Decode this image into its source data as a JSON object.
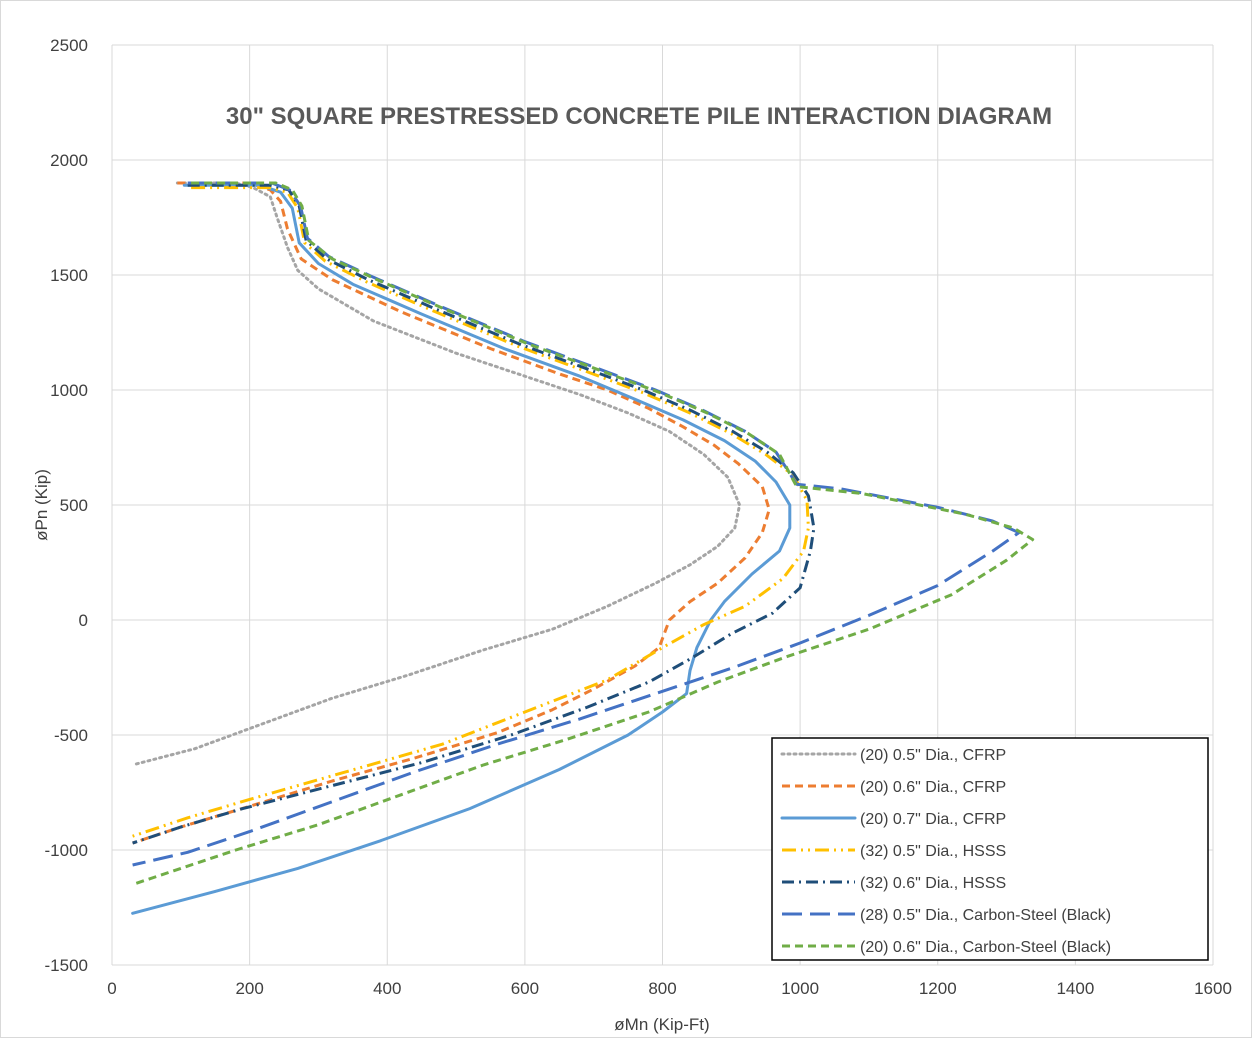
{
  "chart_data": {
    "type": "line",
    "title": "30\" SQUARE PRESTRESSED CONCRETE PILE INTERACTION DIAGRAM",
    "xlabel": "øMn (Kip-Ft)",
    "ylabel": "øPn (Kip)",
    "xlim": [
      0,
      1600
    ],
    "ylim": [
      -1500,
      2500
    ],
    "xticks": [
      "0",
      "200",
      "400",
      "600",
      "800",
      "1000",
      "1200",
      "1400",
      "1600"
    ],
    "yticks": [
      "-1500",
      "-1000",
      "-500",
      "0",
      "500",
      "1000",
      "1500",
      "2000",
      "2500"
    ],
    "grid": true,
    "legend_position": "bottom-right",
    "series": [
      {
        "name": "(20) 0.5\" Dia., CFRP",
        "color": "#a5a5a5",
        "dash": "dot",
        "x": [
          95,
          180,
          205,
          230,
          240,
          255,
          270,
          300,
          380,
          500,
          600,
          680,
          750,
          810,
          860,
          895,
          912,
          905,
          880,
          840,
          790,
          720,
          640,
          540,
          430,
          320,
          220,
          120,
          30
        ],
        "y": [
          1900,
          1900,
          1880,
          1840,
          1750,
          1620,
          1520,
          1440,
          1300,
          1160,
          1060,
          980,
          900,
          820,
          720,
          620,
          500,
          400,
          320,
          240,
          160,
          60,
          -40,
          -130,
          -240,
          -340,
          -450,
          -560,
          -630
        ]
      },
      {
        "name": "(20) 0.6\" Dia., CFRP",
        "color": "#ed7d31",
        "dash": "short-dash",
        "x": [
          95,
          200,
          230,
          245,
          255,
          275,
          320,
          420,
          550,
          650,
          720,
          780,
          830,
          875,
          910,
          945,
          955,
          945,
          920,
          880,
          840,
          810,
          795,
          760,
          700,
          640,
          560,
          440,
          320,
          200,
          100,
          30
        ],
        "y": [
          1900,
          1900,
          1870,
          1820,
          1700,
          1570,
          1480,
          1340,
          1180,
          1070,
          1000,
          920,
          840,
          760,
          680,
          580,
          480,
          380,
          270,
          160,
          80,
          0,
          -120,
          -200,
          -300,
          -390,
          -490,
          -600,
          -700,
          -810,
          -900,
          -970
        ]
      },
      {
        "name": "(20) 0.7\" Dia., CFRP",
        "color": "#5b9bd5",
        "dash": "solid",
        "x": [
          105,
          215,
          245,
          262,
          272,
          300,
          350,
          450,
          570,
          680,
          760,
          830,
          890,
          935,
          965,
          985,
          985,
          970,
          930,
          890,
          870,
          850,
          840,
          835,
          800,
          750,
          650,
          520,
          390,
          270,
          150,
          30
        ],
        "y": [
          1890,
          1890,
          1860,
          1790,
          1640,
          1550,
          1460,
          1330,
          1180,
          1060,
          960,
          870,
          780,
          690,
          600,
          500,
          400,
          300,
          200,
          80,
          0,
          -120,
          -220,
          -320,
          -400,
          -500,
          -650,
          -820,
          -960,
          -1080,
          -1180,
          -1275
        ]
      },
      {
        "name": "(32) 0.5\" Dia., HSSS",
        "color": "#ffc000",
        "dash": "dash-dot-dot",
        "x": [
          115,
          228,
          255,
          270,
          280,
          310,
          370,
          470,
          590,
          690,
          770,
          840,
          900,
          950,
          990,
          1010,
          1012,
          1005,
          975,
          920,
          860,
          800,
          720,
          600,
          480,
          340,
          200,
          110,
          30
        ],
        "y": [
          1880,
          1880,
          1860,
          1790,
          1640,
          1560,
          1470,
          1340,
          1190,
          1080,
          990,
          900,
          810,
          720,
          630,
          520,
          400,
          300,
          180,
          60,
          -20,
          -120,
          -260,
          -400,
          -540,
          -660,
          -780,
          -860,
          -940
        ]
      },
      {
        "name": "(32) 0.6\" Dia., HSSS",
        "color": "#1f4e79",
        "dash": "dash-dot",
        "x": [
          110,
          230,
          257,
          272,
          282,
          312,
          372,
          472,
          592,
          692,
          772,
          842,
          902,
          952,
          990,
          1012,
          1020,
          1015,
          1000,
          960,
          900,
          840,
          780,
          690,
          580,
          450,
          320,
          190,
          100,
          30
        ],
        "y": [
          1890,
          1890,
          1870,
          1800,
          1650,
          1570,
          1480,
          1350,
          1200,
          1090,
          1000,
          910,
          820,
          730,
          640,
          540,
          400,
          300,
          140,
          30,
          -60,
          -170,
          -270,
          -380,
          -500,
          -620,
          -720,
          -820,
          -900,
          -970
        ]
      },
      {
        "name": "(28) 0.5\" Dia., Carbon-Steel (Black)",
        "color": "#4472c4",
        "dash": "long-dash",
        "x": [
          110,
          232,
          258,
          274,
          284,
          315,
          380,
          480,
          600,
          700,
          790,
          860,
          920,
          965,
          995,
          1060,
          1200,
          1280,
          1318,
          1280,
          1200,
          1100,
          1000,
          900,
          790,
          680,
          560,
          440,
          320,
          200,
          110,
          30
        ],
        "y": [
          1900,
          1900,
          1870,
          1800,
          1660,
          1580,
          1490,
          1360,
          1210,
          1100,
          1000,
          910,
          820,
          730,
          590,
          570,
          490,
          430,
          380,
          300,
          150,
          20,
          -100,
          -210,
          -320,
          -430,
          -540,
          -660,
          -790,
          -920,
          -1010,
          -1065
        ]
      },
      {
        "name": "(20) 0.6\" Dia., Carbon-Steel (Black)",
        "color": "#70ad47",
        "dash": "short-dash",
        "x": [
          115,
          238,
          262,
          276,
          286,
          320,
          385,
          485,
          605,
          705,
          795,
          865,
          925,
          970,
          995,
          1090,
          1240,
          1310,
          1338,
          1300,
          1220,
          1100,
          980,
          880,
          780,
          660,
          540,
          420,
          300,
          180,
          100,
          30
        ],
        "y": [
          1900,
          1900,
          1870,
          1800,
          1650,
          1570,
          1480,
          1350,
          1200,
          1090,
          990,
          900,
          810,
          720,
          580,
          550,
          460,
          400,
          350,
          260,
          110,
          -40,
          -160,
          -270,
          -400,
          -520,
          -630,
          -760,
          -890,
          -1000,
          -1080,
          -1150
        ]
      }
    ]
  }
}
